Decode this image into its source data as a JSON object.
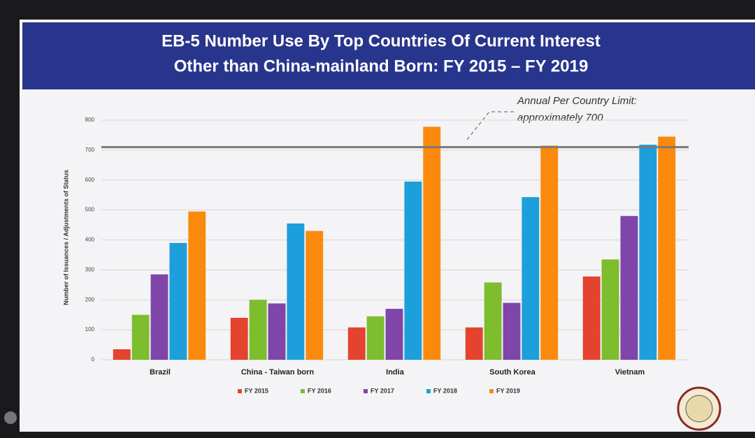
{
  "chart_data": {
    "type": "bar",
    "title": [
      "EB-5 Number Use By Top Countries Of Current Interest",
      "Other than China-mainland Born: FY 2015 – FY 2019"
    ],
    "y_label": "Number of Issuances / Adjustments of Status",
    "categories": [
      "Brazil",
      "China - Taiwan born",
      "India",
      "South Korea",
      "Vietnam"
    ],
    "series": [
      {
        "name": "FY 2015",
        "color": "#e4432d",
        "values": [
          35,
          140,
          108,
          108,
          278
        ]
      },
      {
        "name": "FY 2016",
        "color": "#7dbd2e",
        "values": [
          150,
          200,
          145,
          258,
          335
        ]
      },
      {
        "name": "FY 2017",
        "color": "#7f45a8",
        "values": [
          285,
          188,
          170,
          190,
          480
        ]
      },
      {
        "name": "FY 2018",
        "color": "#1c9fda",
        "values": [
          390,
          455,
          595,
          543,
          718
        ]
      },
      {
        "name": "FY 2019",
        "color": "#fb8a0c",
        "values": [
          495,
          430,
          778,
          715,
          745
        ]
      }
    ],
    "ylim": [
      0,
      800
    ],
    "yticks": [
      0,
      100,
      200,
      300,
      400,
      500,
      600,
      700,
      800
    ],
    "grid": true,
    "reference_line": 710,
    "annotation": [
      "Annual Per Country Limit:",
      "approximately 700"
    ],
    "legend": "bottom"
  }
}
